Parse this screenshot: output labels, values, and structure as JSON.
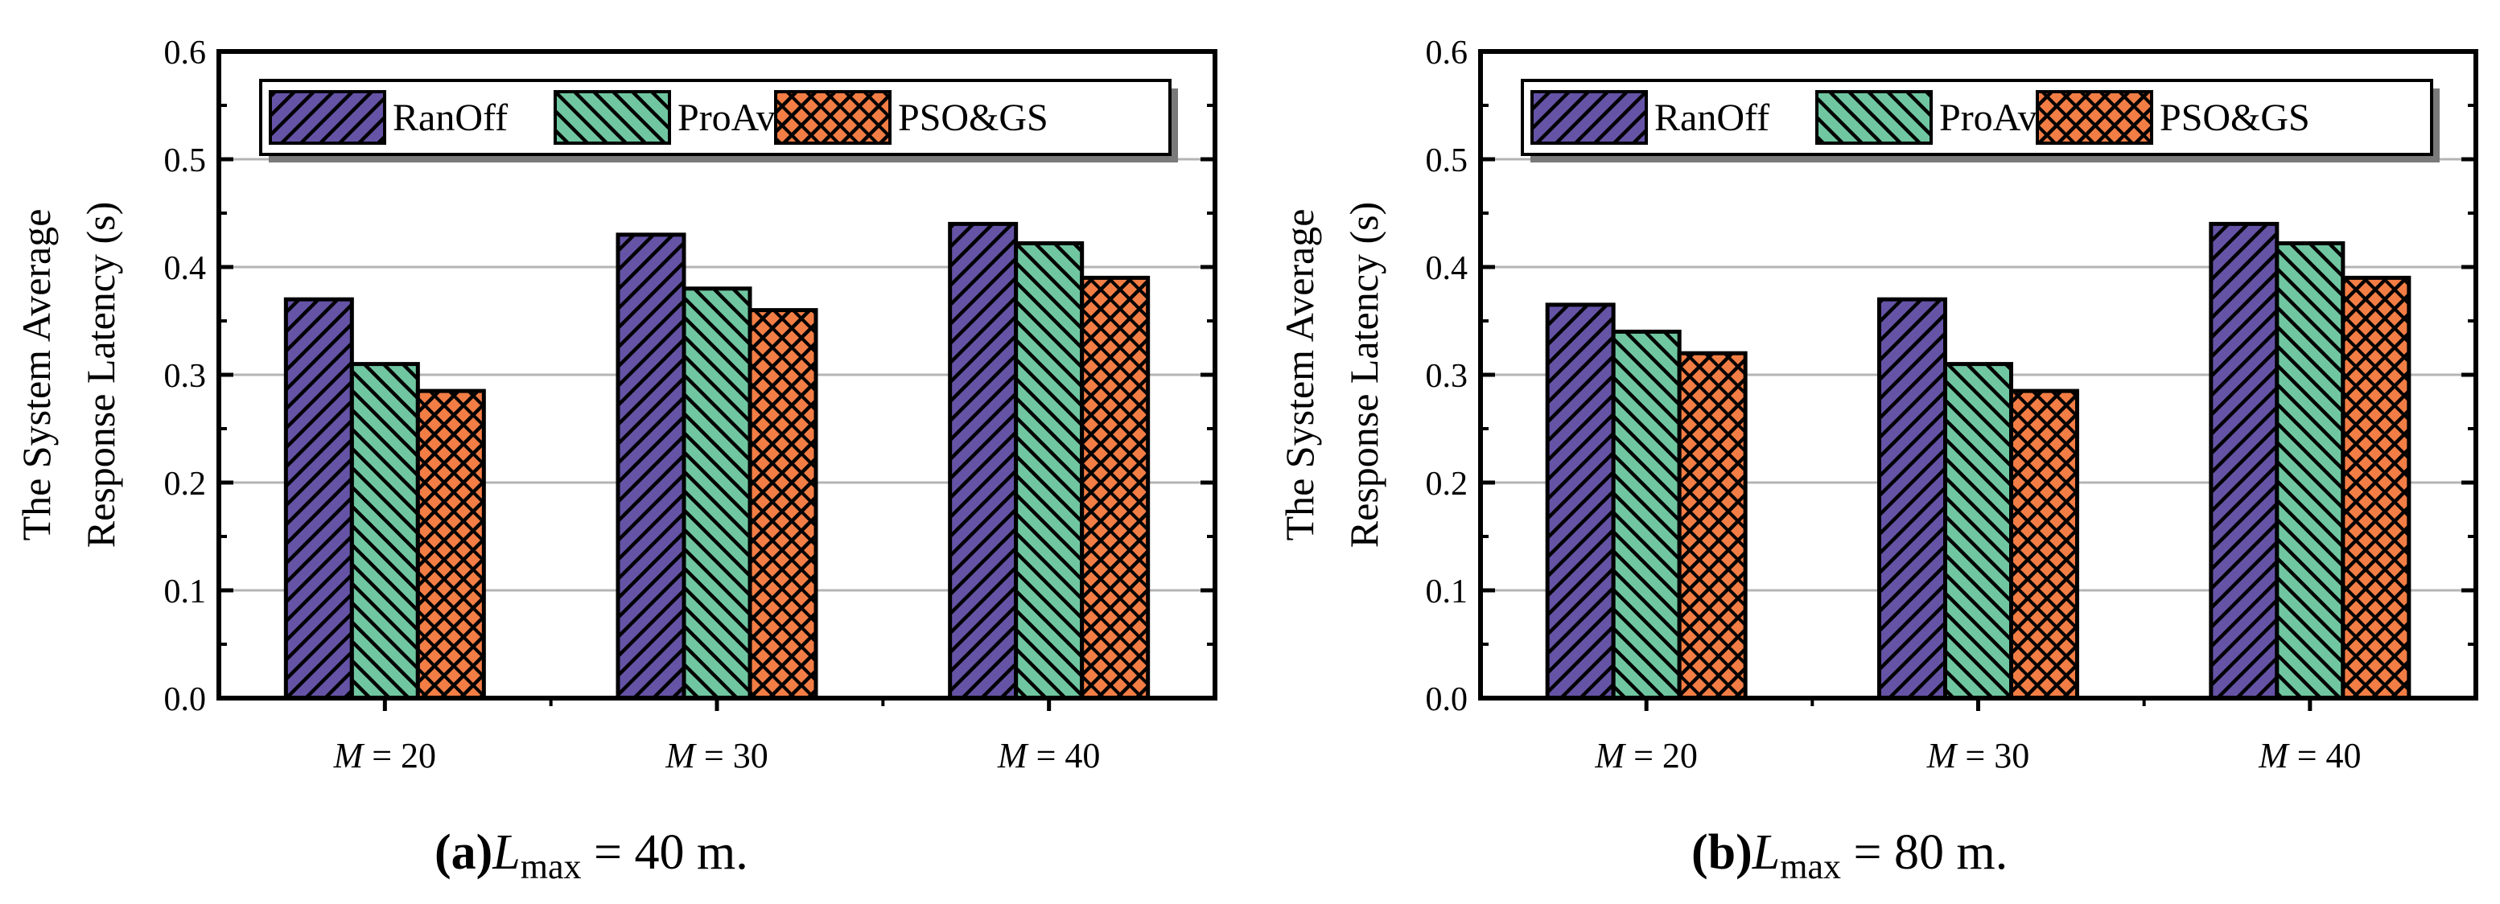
{
  "colors": {
    "ranoff": "#6553a6",
    "proave": "#6fc6a0",
    "psogs": "#f27d45",
    "edge": "#000000",
    "grid": "#b4b4b4"
  },
  "legend_labels": [
    "RanOff",
    "ProAve",
    "PSO&GS"
  ],
  "chart_data": [
    {
      "type": "bar",
      "panel_label": "(a)",
      "caption_var": "L",
      "caption_sub": "max",
      "caption_rest": " = 40 m.",
      "ylabel_line1": "The System Average",
      "ylabel_line2": "Response Latency (s)",
      "ylim": [
        0,
        0.6
      ],
      "yticks": [
        "0.0",
        "0.1",
        "0.2",
        "0.3",
        "0.4",
        "0.5",
        "0.6"
      ],
      "categories": [
        {
          "var": "M",
          "rest": " = 20"
        },
        {
          "var": "M",
          "rest": " = 30"
        },
        {
          "var": "M",
          "rest": " = 40"
        }
      ],
      "series": [
        {
          "name": "RanOff",
          "values": [
            0.37,
            0.43,
            0.44
          ]
        },
        {
          "name": "ProAve",
          "values": [
            0.31,
            0.38,
            0.422
          ]
        },
        {
          "name": "PSO&GS",
          "values": [
            0.285,
            0.36,
            0.39
          ]
        }
      ]
    },
    {
      "type": "bar",
      "panel_label": "(b)",
      "caption_var": "L",
      "caption_sub": "max",
      "caption_rest": " = 80 m.",
      "ylabel_line1": "The System Average",
      "ylabel_line2": "Response Latency (s)",
      "ylim": [
        0,
        0.6
      ],
      "yticks": [
        "0.0",
        "0.1",
        "0.2",
        "0.3",
        "0.4",
        "0.5",
        "0.6"
      ],
      "categories": [
        {
          "var": "M",
          "rest": " = 20"
        },
        {
          "var": "M",
          "rest": " = 30"
        },
        {
          "var": "M",
          "rest": " = 40"
        }
      ],
      "series": [
        {
          "name": "RanOff",
          "values": [
            0.365,
            0.37,
            0.44
          ]
        },
        {
          "name": "ProAve",
          "values": [
            0.34,
            0.31,
            0.422
          ]
        },
        {
          "name": "PSO&GS",
          "values": [
            0.32,
            0.285,
            0.39
          ]
        }
      ]
    }
  ]
}
